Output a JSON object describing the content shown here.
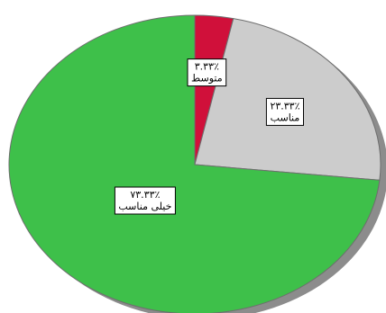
{
  "chart_data": {
    "type": "pie",
    "title": "",
    "slices": [
      {
        "label": "متوسط",
        "value": 3.33,
        "value_text": "٣.٣٣٪",
        "color": "#d0103a"
      },
      {
        "label": "مناسب",
        "value": 23.33,
        "value_text": "٢٣.٣٣٪",
        "color": "#cccccc"
      },
      {
        "label": "خیلی مناسب",
        "value": 73.33,
        "value_text": "٧٣.٣٣٪",
        "color": "#3ec04a"
      }
    ],
    "start_angle": "top",
    "direction": "clockwise",
    "legend": "none",
    "shadow_color": "#8c8c8c",
    "edge_color": "#6e6e6e"
  }
}
